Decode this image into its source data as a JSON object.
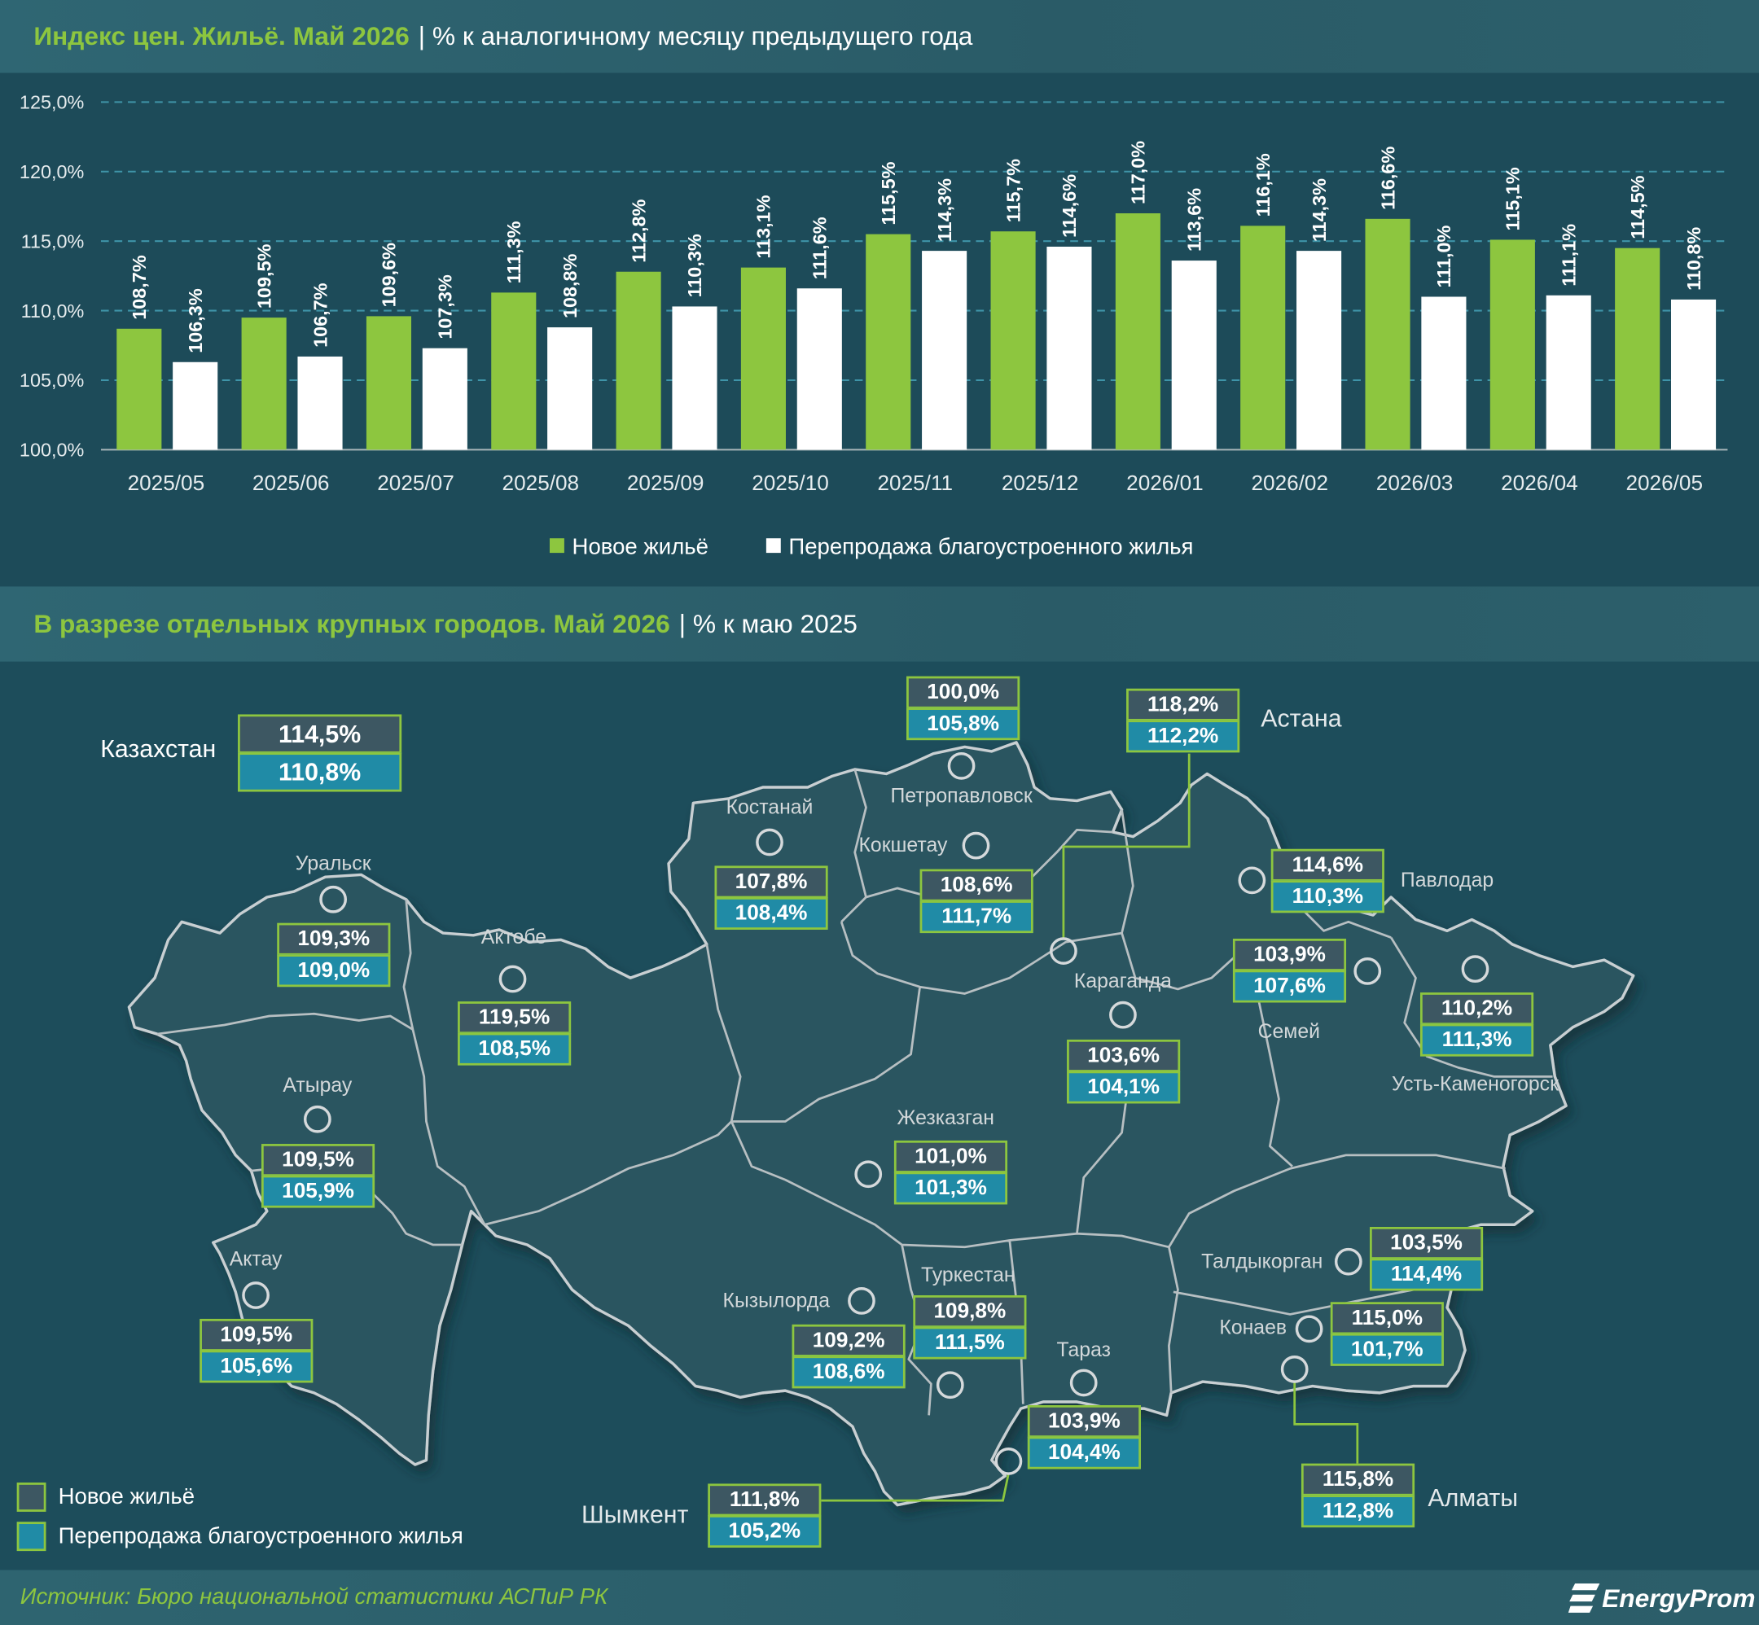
{
  "chart_header": {
    "title": "Индекс цен. Жильё. Май 2026",
    "subtitle": "| % к аналогичному месяцу предыдущего года"
  },
  "chart_data": {
    "type": "bar",
    "categories": [
      "2025/05",
      "2025/06",
      "2025/07",
      "2025/08",
      "2025/09",
      "2025/10",
      "2025/11",
      "2025/12",
      "2026/01",
      "2026/02",
      "2026/03",
      "2026/04",
      "2026/05"
    ],
    "series": [
      {
        "name": "Новое жильё",
        "color": "#8dc63f",
        "values": [
          108.7,
          109.5,
          109.6,
          111.3,
          112.8,
          113.1,
          115.5,
          115.7,
          117.0,
          116.1,
          116.6,
          115.1,
          114.5
        ]
      },
      {
        "name": "Перепродажа благоустроенного жилья",
        "color": "#ffffff",
        "values": [
          106.3,
          106.7,
          107.3,
          108.8,
          110.3,
          111.6,
          114.3,
          114.6,
          113.6,
          114.3,
          111.0,
          111.1,
          110.8
        ]
      }
    ],
    "ylim": [
      100,
      125
    ],
    "y_ticks": [
      100,
      105,
      110,
      115,
      120,
      125
    ],
    "grid": true,
    "data_labels": true,
    "legend": "bottom"
  },
  "map_header": {
    "title": "В разрезе отдельных крупных городов. Май 2026",
    "subtitle": "| % к маю 2025"
  },
  "map": {
    "country": {
      "name": "Казахстан",
      "new": "114,5%",
      "resale": "110,8%"
    },
    "cities": [
      {
        "name": "Петропавловск",
        "new": "100,0%",
        "resale": "105,8%"
      },
      {
        "name": "Астана",
        "new": "118,2%",
        "resale": "112,2%"
      },
      {
        "name": "Костанай",
        "new": "107,8%",
        "resale": "108,4%"
      },
      {
        "name": "Кокшетау",
        "new": "108,6%",
        "resale": "111,7%"
      },
      {
        "name": "Уральск",
        "new": "109,3%",
        "resale": "109,0%"
      },
      {
        "name": "Актобе",
        "new": "119,5%",
        "resale": "108,5%"
      },
      {
        "name": "Павлодар",
        "new": "114,6%",
        "resale": "110,3%"
      },
      {
        "name": "Семей",
        "new": "103,9%",
        "resale": "107,6%"
      },
      {
        "name": "Караганда",
        "new": "103,6%",
        "resale": "104,1%"
      },
      {
        "name": "Усть-Каменогорск",
        "new": "110,2%",
        "resale": "111,3%"
      },
      {
        "name": "Атырау",
        "new": "109,5%",
        "resale": "105,9%"
      },
      {
        "name": "Жезказган",
        "new": "101,0%",
        "resale": "101,3%"
      },
      {
        "name": "Талдыкорган",
        "new": "103,5%",
        "resale": "114,4%"
      },
      {
        "name": "Актау",
        "new": "109,5%",
        "resale": "105,6%"
      },
      {
        "name": "Кызылорда",
        "new": "109,2%",
        "resale": "108,6%"
      },
      {
        "name": "Туркестан",
        "new": "109,8%",
        "resale": "111,5%"
      },
      {
        "name": "Конаев",
        "new": "115,0%",
        "resale": "101,7%"
      },
      {
        "name": "Тараз",
        "new": "103,9%",
        "resale": "104,4%"
      },
      {
        "name": "Алматы",
        "new": "115,8%",
        "resale": "112,8%"
      },
      {
        "name": "Шымкент",
        "new": "111,8%",
        "resale": "105,2%"
      }
    ],
    "legend": {
      "new": "Новое жильё",
      "resale": "Перепродажа благоустроенного жилья"
    },
    "colors": {
      "new": "#3d5762",
      "resale": "#208ba6",
      "border": "#8dc63f",
      "connector": "#8dc63f"
    }
  },
  "footer": {
    "source": "Источник: Бюро национальной статистики АСПиР РК",
    "logo": "EnergyProm"
  }
}
